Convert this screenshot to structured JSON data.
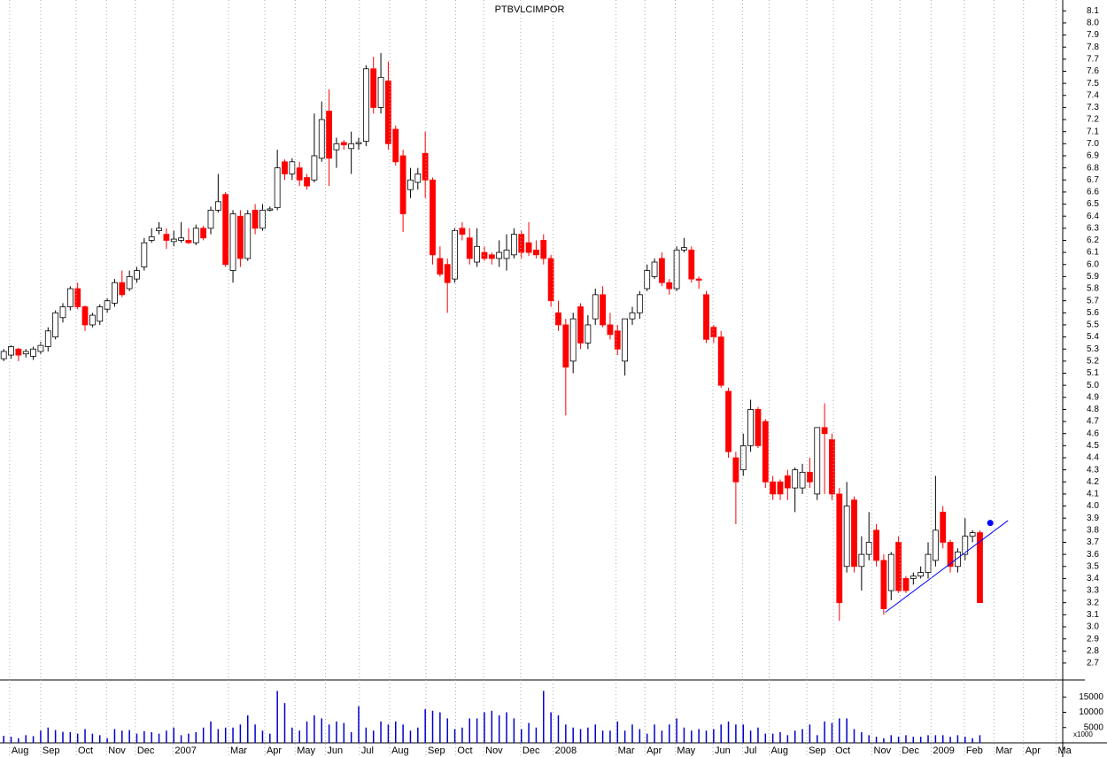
{
  "chart_data": [
    {
      "type": "candlestick",
      "title": "PTBVLCIMPOR",
      "open": [
        5.22,
        5.25,
        5.3,
        5.26,
        5.24,
        5.28,
        5.32,
        5.4,
        5.56,
        5.65,
        5.8,
        5.65,
        5.5,
        5.53,
        5.63,
        5.68,
        5.85,
        5.8,
        5.88,
        5.98,
        6.2,
        6.28,
        6.25,
        6.19,
        6.2,
        6.2,
        6.18,
        6.3,
        6.3,
        6.45,
        6.58,
        5.95,
        6.4,
        6.05,
        6.45,
        6.3,
        6.45,
        6.47,
        6.85,
        6.75,
        6.8,
        6.72,
        6.7,
        6.88,
        7.27,
        6.95,
        7.01,
        6.96,
        7.0,
        7.02,
        7.62,
        7.3,
        7.52,
        7.12,
        6.9,
        6.62,
        6.68,
        6.92,
        6.7,
        6.05,
        6.0,
        5.88,
        6.3,
        6.22,
        6.02,
        6.1,
        6.08,
        6.05,
        6.05,
        6.08,
        6.25,
        6.18,
        6.12,
        6.2,
        6.05,
        5.6,
        5.5,
        5.2,
        5.65,
        5.35,
        5.55,
        5.75,
        5.5,
        5.45,
        5.2,
        5.55,
        5.6,
        5.8,
        5.9,
        6.05,
        5.85,
        5.8,
        6.12,
        6.12,
        5.88,
        5.75,
        5.48,
        5.4,
        4.95,
        4.4,
        4.3,
        4.5,
        4.8,
        4.7,
        4.2,
        4.2,
        4.25,
        4.15,
        4.15,
        4.28,
        4.1,
        4.65,
        4.55,
        4.1,
        3.5,
        4.05,
        3.5,
        3.6,
        3.8,
        3.55,
        3.3,
        3.7,
        3.4,
        3.4,
        3.42,
        3.45,
        3.55,
        3.95,
        3.7,
        3.5,
        3.6,
        3.75,
        3.78
      ],
      "high": [
        5.3,
        5.33,
        5.31,
        5.3,
        5.32,
        5.36,
        5.48,
        5.62,
        5.68,
        5.82,
        5.85,
        5.66,
        5.6,
        5.67,
        5.72,
        5.88,
        5.95,
        5.95,
        5.98,
        6.22,
        6.3,
        6.35,
        6.3,
        6.28,
        6.35,
        6.3,
        6.33,
        6.32,
        6.48,
        6.75,
        6.6,
        6.45,
        6.45,
        6.45,
        6.5,
        6.5,
        6.48,
        6.95,
        6.87,
        6.88,
        6.85,
        6.75,
        7.25,
        7.35,
        7.45,
        7.05,
        7.03,
        7.1,
        7.05,
        7.65,
        7.72,
        7.75,
        7.68,
        7.15,
        6.95,
        6.8,
        6.8,
        7.1,
        6.72,
        6.15,
        6.05,
        6.3,
        6.35,
        6.3,
        6.3,
        6.15,
        6.1,
        6.2,
        6.25,
        6.3,
        6.28,
        6.35,
        6.2,
        6.25,
        6.08,
        5.7,
        5.55,
        5.6,
        5.68,
        5.58,
        5.8,
        5.82,
        5.6,
        5.5,
        5.55,
        5.65,
        5.78,
        6.0,
        6.05,
        6.1,
        5.88,
        6.15,
        6.22,
        6.15,
        5.9,
        5.78,
        5.5,
        5.45,
        4.98,
        4.45,
        4.6,
        4.88,
        4.82,
        4.72,
        4.25,
        4.22,
        4.3,
        4.32,
        4.35,
        4.4,
        4.65,
        4.85,
        4.6,
        4.15,
        4.2,
        4.08,
        3.75,
        3.95,
        3.85,
        3.6,
        3.62,
        3.75,
        3.42,
        3.45,
        3.5,
        3.7,
        4.25,
        4.0,
        3.72,
        3.65,
        3.9,
        3.8,
        3.8
      ],
      "low": [
        5.2,
        5.22,
        5.2,
        5.23,
        5.21,
        5.26,
        5.28,
        5.38,
        5.52,
        5.62,
        5.63,
        5.45,
        5.48,
        5.5,
        5.6,
        5.65,
        5.73,
        5.78,
        5.85,
        5.95,
        6.18,
        6.25,
        6.13,
        6.15,
        6.18,
        6.17,
        6.16,
        6.2,
        6.25,
        6.43,
        5.98,
        5.85,
        5.98,
        6.03,
        6.25,
        6.28,
        6.44,
        6.45,
        6.7,
        6.7,
        6.65,
        6.62,
        6.68,
        6.85,
        6.65,
        6.8,
        6.95,
        6.75,
        6.95,
        6.98,
        7.25,
        7.25,
        6.95,
        6.82,
        6.27,
        6.55,
        6.62,
        6.55,
        6.0,
        5.9,
        5.6,
        5.85,
        6.2,
        6.0,
        5.98,
        6.03,
        6.0,
        5.98,
        5.95,
        6.05,
        6.05,
        6.07,
        6.05,
        6.0,
        5.65,
        5.45,
        4.75,
        5.1,
        5.3,
        5.3,
        5.5,
        5.48,
        5.38,
        5.25,
        5.08,
        5.5,
        5.55,
        5.78,
        5.88,
        5.82,
        5.75,
        5.78,
        6.1,
        5.85,
        5.8,
        5.35,
        5.35,
        4.98,
        4.4,
        3.85,
        4.25,
        4.45,
        4.48,
        4.15,
        4.05,
        4.05,
        4.05,
        3.95,
        4.1,
        4.15,
        4.05,
        4.1,
        4.05,
        3.05,
        3.45,
        3.45,
        3.3,
        3.55,
        3.5,
        3.1,
        3.22,
        3.28,
        3.28,
        3.35,
        3.4,
        3.4,
        3.5,
        3.65,
        3.45,
        3.45,
        3.55,
        3.7,
        3.2
      ],
      "close": [
        5.28,
        5.32,
        5.25,
        5.28,
        5.3,
        5.33,
        5.45,
        5.6,
        5.65,
        5.8,
        5.65,
        5.5,
        5.58,
        5.65,
        5.7,
        5.85,
        5.75,
        5.9,
        5.95,
        6.18,
        6.23,
        6.3,
        6.2,
        6.21,
        6.22,
        6.18,
        6.3,
        6.22,
        6.45,
        6.52,
        6.0,
        6.42,
        6.05,
        6.42,
        6.3,
        6.45,
        6.46,
        6.8,
        6.75,
        6.85,
        6.7,
        6.65,
        6.9,
        7.2,
        6.88,
        7.0,
        6.99,
        7.0,
        7.01,
        7.62,
        7.3,
        7.55,
        7.0,
        6.85,
        6.42,
        6.7,
        6.75,
        6.7,
        6.08,
        5.92,
        5.85,
        6.28,
        6.25,
        6.05,
        6.15,
        6.05,
        6.05,
        6.1,
        6.12,
        6.25,
        6.1,
        6.1,
        6.08,
        6.05,
        5.7,
        5.5,
        5.15,
        5.55,
        5.35,
        5.5,
        5.75,
        5.5,
        5.42,
        5.3,
        5.55,
        5.6,
        5.75,
        5.95,
        6.02,
        5.85,
        5.8,
        6.12,
        6.14,
        5.88,
        5.87,
        5.38,
        5.4,
        5.0,
        4.45,
        4.2,
        4.5,
        4.8,
        4.5,
        4.2,
        4.1,
        4.1,
        4.15,
        4.3,
        4.28,
        4.2,
        4.65,
        4.6,
        4.1,
        3.2,
        4.0,
        3.5,
        3.6,
        3.7,
        3.55,
        3.15,
        3.6,
        3.3,
        3.3,
        3.42,
        3.45,
        3.6,
        3.8,
        3.7,
        3.5,
        3.62,
        3.75,
        3.78,
        3.2
      ],
      "up_color": "#ffffff",
      "down_color": "#ff0000",
      "xlim": [
        -0.5,
        143.2
      ],
      "ylim": [
        2.56,
        8.19
      ],
      "yticks": [
        2.7,
        2.8,
        2.9,
        {
          "value": 3,
          "label": "3.0"
        },
        3.1,
        3.2,
        3.3,
        3.4,
        3.5,
        3.6,
        3.7,
        3.8,
        3.9,
        {
          "value": 4,
          "label": "4.0"
        },
        4.1,
        4.2,
        4.3,
        4.4,
        4.5,
        4.6,
        4.7,
        4.8,
        4.9,
        {
          "value": 5,
          "label": "5.0"
        },
        5.1,
        5.2,
        5.3,
        5.4,
        5.5,
        5.6,
        5.7,
        5.8,
        5.9,
        {
          "value": 6,
          "label": "6.0"
        },
        6.1,
        6.2,
        6.3,
        6.4,
        6.5,
        6.6,
        6.7,
        6.8,
        6.9,
        {
          "value": 7,
          "label": "7.0"
        },
        7.1,
        7.2,
        7.3,
        7.4,
        7.5,
        7.6,
        7.7,
        7.8,
        7.9,
        {
          "value": 8,
          "label": "8.0"
        },
        8.1
      ],
      "trendline": {
        "x": [
          119.2,
          135.8
        ],
        "y": [
          3.12,
          3.88
        ],
        "color": "#0000ff"
      },
      "alert_point": {
        "x": 133.4,
        "y": 3.86,
        "color": "#0000ff"
      }
    },
    {
      "type": "volume",
      "unit_label": "x1000",
      "color": "#0000cc",
      "values": [
        2300,
        2000,
        1500,
        2500,
        2200,
        4000,
        5000,
        4200,
        3600,
        3500,
        3000,
        4500,
        3000,
        2500,
        1500,
        4500,
        4000,
        4200,
        3000,
        3800,
        3500,
        3000,
        4000,
        5000,
        2500,
        3000,
        3500,
        5000,
        7000,
        4500,
        5000,
        5000,
        6000,
        9000,
        6000,
        4000,
        3000,
        17000,
        13000,
        5000,
        4000,
        7000,
        9000,
        8000,
        6000,
        7000,
        6500,
        3500,
        12000,
        5000,
        4000,
        7000,
        6000,
        7000,
        6000,
        4000,
        5000,
        11000,
        10500,
        10000,
        8000,
        4500,
        5000,
        8000,
        8000,
        10000,
        10500,
        9000,
        10000,
        8000,
        4500,
        6500,
        5000,
        17000,
        10000,
        9000,
        6000,
        5000,
        4500,
        5000,
        6000,
        4000,
        4000,
        7000,
        4000,
        6000,
        4500,
        3000,
        6000,
        4000,
        6000,
        8000,
        5000,
        4000,
        4500,
        4000,
        4500,
        6000,
        7000,
        6000,
        6000,
        4000,
        5000,
        3000,
        3000,
        3500,
        2500,
        4000,
        4500,
        6000,
        2500,
        7000,
        6500,
        8000,
        8000,
        4500,
        3500,
        2500,
        2000,
        1500,
        2500,
        2000,
        2500,
        2000,
        2000,
        2500,
        2500,
        2500,
        2000,
        2500,
        2000,
        1500,
        2500
      ],
      "xlim": [
        -0.5,
        143.2
      ],
      "ylim": [
        0,
        20000
      ],
      "yticks": [
        5000,
        10000,
        15000
      ],
      "xticks": [
        {
          "value": 0.8,
          "label": "Aug"
        },
        {
          "value": 5.0,
          "label": "Sep"
        },
        {
          "value": 9.8,
          "label": "Oct"
        },
        {
          "value": 13.9,
          "label": "Nov"
        },
        {
          "value": 17.8,
          "label": "Dec"
        },
        {
          "value": 22.9,
          "label": "2007"
        },
        {
          "value": 30.4,
          "label": "Mar"
        },
        {
          "value": 35.3,
          "label": "Apr"
        },
        {
          "value": 39.4,
          "label": "May"
        },
        {
          "value": 43.5,
          "label": "Jun"
        },
        {
          "value": 48.1,
          "label": "Jul"
        },
        {
          "value": 52.2,
          "label": "Aug"
        },
        {
          "value": 57.1,
          "label": "Sep"
        },
        {
          "value": 61.1,
          "label": "Oct"
        },
        {
          "value": 64.9,
          "label": "Nov"
        },
        {
          "value": 69.9,
          "label": "Dec"
        },
        {
          "value": 74.3,
          "label": "2008"
        },
        {
          "value": 82.8,
          "label": "Mar"
        },
        {
          "value": 86.7,
          "label": "Apr"
        },
        {
          "value": 90.8,
          "label": "May"
        },
        {
          "value": 95.9,
          "label": "Jun"
        },
        {
          "value": 99.9,
          "label": "Jul"
        },
        {
          "value": 103.5,
          "label": "Aug"
        },
        {
          "value": 108.6,
          "label": "Sep"
        },
        {
          "value": 112.2,
          "label": "Oct"
        },
        {
          "value": 117.4,
          "label": "Nov"
        },
        {
          "value": 121.2,
          "label": "Dec"
        },
        {
          "value": 125.4,
          "label": "2009"
        },
        {
          "value": 129.9,
          "label": "Feb"
        },
        {
          "value": 133.9,
          "label": "Mar"
        },
        {
          "value": 137.9,
          "label": "Apr"
        },
        {
          "value": 142.3,
          "label": "Ma"
        }
      ]
    }
  ]
}
